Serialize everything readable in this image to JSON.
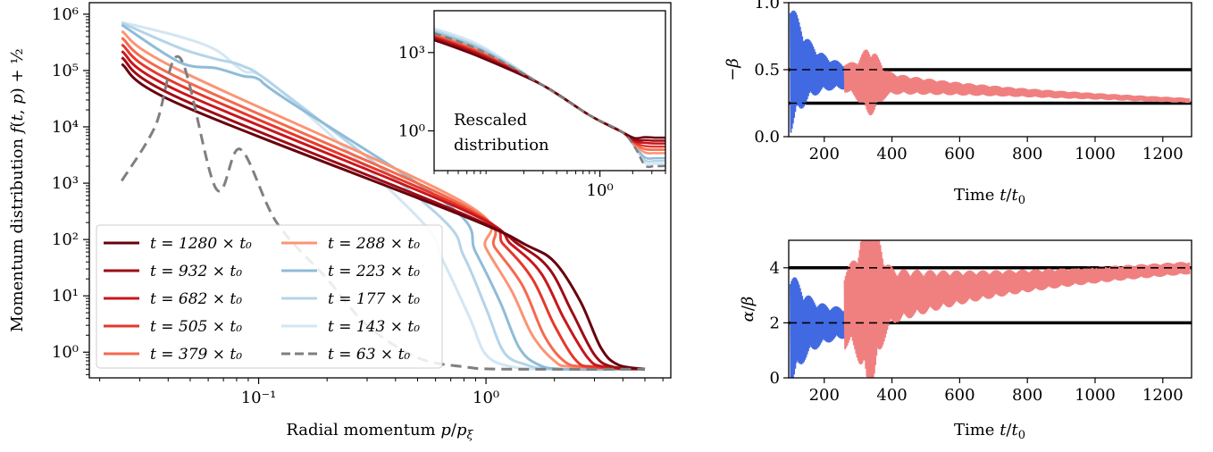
{
  "chart_data": [
    {
      "type": "line",
      "xlabel": "Radial momentum p/p_ξ",
      "ylabel": "Momentum distribution f(t,p) + ½",
      "xscale": "log",
      "yscale": "log",
      "xlim": [
        0.018,
        6.5
      ],
      "ylim": [
        0.35,
        1600000
      ],
      "x_ticks": [
        {
          "v": 0.1,
          "label": "10⁻¹"
        },
        {
          "v": 1,
          "label": "10⁰"
        }
      ],
      "y_ticks": [
        {
          "v": 1,
          "label": "10⁰"
        },
        {
          "v": 10,
          "label": "10¹"
        },
        {
          "v": 100,
          "label": "10²"
        },
        {
          "v": 1000,
          "label": "10³"
        },
        {
          "v": 10000,
          "label": "10⁴"
        },
        {
          "v": 100000,
          "label": "10⁵"
        },
        {
          "v": 1000000,
          "label": "10⁶"
        }
      ],
      "legend": "lower-left",
      "series": [
        {
          "name": "t = 1280 × t₀",
          "color": "#67000d",
          "dashed": false,
          "knots": [
            [
              0.025,
              130000
            ],
            [
              0.045,
              25000
            ],
            [
              0.8,
              260
            ],
            [
              1.5,
              80
            ],
            [
              2.0,
              40
            ],
            [
              2.6,
              8
            ],
            [
              3.2,
              1.2
            ],
            [
              3.8,
              0.6
            ],
            [
              5.0,
              0.5
            ]
          ]
        },
        {
          "name": "t = 932 × t₀",
          "color": "#9e0c15",
          "dashed": false,
          "knots": [
            [
              0.025,
              170000
            ],
            [
              0.045,
              32000
            ],
            [
              0.8,
              280
            ],
            [
              1.4,
              80
            ],
            [
              1.9,
              30
            ],
            [
              2.4,
              5
            ],
            [
              3.0,
              0.9
            ],
            [
              3.6,
              0.55
            ],
            [
              5.0,
              0.5
            ]
          ]
        },
        {
          "name": "t = 682 × t₀",
          "color": "#c8171c",
          "dashed": false,
          "knots": [
            [
              0.025,
              220000
            ],
            [
              0.045,
              42000
            ],
            [
              0.8,
              330
            ],
            [
              1.3,
              80
            ],
            [
              1.75,
              25
            ],
            [
              2.2,
              4
            ],
            [
              2.8,
              0.8
            ],
            [
              3.3,
              0.55
            ],
            [
              5.0,
              0.5
            ]
          ]
        },
        {
          "name": "t = 505 × t₀",
          "color": "#e5382b",
          "dashed": false,
          "knots": [
            [
              0.025,
              290000
            ],
            [
              0.045,
              55000
            ],
            [
              0.8,
              360
            ],
            [
              1.2,
              80
            ],
            [
              1.6,
              20
            ],
            [
              2.0,
              3
            ],
            [
              2.5,
              0.7
            ],
            [
              3.0,
              0.55
            ],
            [
              5.0,
              0.5
            ]
          ]
        },
        {
          "name": "t = 379 × t₀",
          "color": "#f4694d",
          "dashed": false,
          "knots": [
            [
              0.025,
              380000
            ],
            [
              0.045,
              72000
            ],
            [
              0.8,
              400
            ],
            [
              1.1,
              70
            ],
            [
              1.45,
              15
            ],
            [
              1.8,
              2
            ],
            [
              2.2,
              0.7
            ],
            [
              2.7,
              0.55
            ],
            [
              5.0,
              0.5
            ]
          ]
        },
        {
          "name": "t = 288 × t₀",
          "color": "#fb9474",
          "dashed": false,
          "knots": [
            [
              0.025,
              500000
            ],
            [
              0.045,
              100000
            ],
            [
              0.8,
              450
            ],
            [
              1.0,
              70
            ],
            [
              1.3,
              12
            ],
            [
              1.6,
              2
            ],
            [
              2.0,
              0.7
            ],
            [
              2.4,
              0.55
            ],
            [
              5.0,
              0.5
            ]
          ]
        },
        {
          "name": "t = 223 × t₀",
          "color": "#8fbcd8",
          "dashed": false,
          "knots": [
            [
              0.025,
              650000
            ],
            [
              0.045,
              140000
            ],
            [
              0.065,
              110000
            ],
            [
              0.085,
              80000
            ],
            [
              0.1,
              70000
            ],
            [
              0.13,
              32000
            ],
            [
              0.7,
              380
            ],
            [
              0.9,
              60
            ],
            [
              1.15,
              8
            ],
            [
              1.4,
              1.2
            ],
            [
              1.7,
              0.6
            ],
            [
              2.2,
              0.5
            ],
            [
              5.0,
              0.5
            ]
          ]
        },
        {
          "name": "t = 177 × t₀",
          "color": "#b4d4e8",
          "dashed": false,
          "knots": [
            [
              0.025,
              700000
            ],
            [
              0.045,
              250000
            ],
            [
              0.065,
              160000
            ],
            [
              0.085,
              120000
            ],
            [
              0.12,
              50000
            ],
            [
              0.6,
              300
            ],
            [
              0.8,
              50
            ],
            [
              1.0,
              6
            ],
            [
              1.2,
              1.0
            ],
            [
              1.5,
              0.6
            ],
            [
              2.0,
              0.5
            ],
            [
              5.0,
              0.5
            ]
          ]
        },
        {
          "name": "t = 143 × t₀",
          "color": "#d3e6f3",
          "dashed": false,
          "knots": [
            [
              0.025,
              720000
            ],
            [
              0.045,
              400000
            ],
            [
              0.065,
              230000
            ],
            [
              0.085,
              100000
            ],
            [
              0.12,
              50000
            ],
            [
              0.5,
              250
            ],
            [
              0.65,
              40
            ],
            [
              0.85,
              4
            ],
            [
              1.0,
              0.9
            ],
            [
              1.3,
              0.55
            ],
            [
              2.0,
              0.5
            ],
            [
              5.0,
              0.5
            ]
          ]
        },
        {
          "name": "t = 63 × t₀",
          "color": "#7f7f7f",
          "dashed": true,
          "knots": [
            [
              0.025,
              1100
            ],
            [
              0.035,
              10000
            ],
            [
              0.045,
              170000
            ],
            [
              0.065,
              800
            ],
            [
              0.083,
              4000
            ],
            [
              0.12,
              200
            ],
            [
              0.2,
              20
            ],
            [
              0.3,
              3
            ],
            [
              0.5,
              0.8
            ],
            [
              0.8,
              0.55
            ],
            [
              1.2,
              0.5
            ],
            [
              5.0,
              0.5
            ]
          ]
        }
      ]
    },
    {
      "type": "line",
      "title": "Rescaled distribution",
      "inset": true,
      "xscale": "log",
      "yscale": "log",
      "xlim": [
        0.03,
        4.0
      ],
      "ylim": [
        0.03,
        40000
      ],
      "x_ticks": [
        {
          "v": 1,
          "label": "10⁰"
        }
      ],
      "y_ticks": [
        {
          "v": 1,
          "label": "10⁰"
        },
        {
          "v": 1000,
          "label": "10³"
        }
      ],
      "note": "all ten curves collapse onto one shape"
    },
    {
      "type": "line",
      "ylabel": "−β",
      "xlabel": "Time t/t₀",
      "xlim": [
        95,
        1285
      ],
      "ylim": [
        0.0,
        1.0
      ],
      "x_ticks": [
        200,
        400,
        600,
        800,
        1000,
        1200
      ],
      "y_ticks": [
        {
          "v": 0.0,
          "label": "0.0"
        },
        {
          "v": 0.5,
          "label": "0.5"
        },
        {
          "v": 1.0,
          "label": "1.0"
        }
      ],
      "reference_lines": [
        0.5,
        0.25
      ],
      "segments": [
        {
          "color": "#4169e1",
          "x_range": [
            100,
            260
          ],
          "center": [
            0.55,
            0.45
          ],
          "amplitude": [
            0.45,
            0.08
          ]
        },
        {
          "color": "#f08080",
          "x_range": [
            260,
            1280
          ],
          "center": [
            0.45,
            0.27
          ],
          "amplitude": [
            0.1,
            0.015
          ],
          "bump_at": 335
        }
      ]
    },
    {
      "type": "line",
      "ylabel": "α/β",
      "xlabel": "Time t/t₀",
      "xlim": [
        95,
        1285
      ],
      "ylim": [
        0,
        5
      ],
      "x_ticks": [
        200,
        400,
        600,
        800,
        1000,
        1200
      ],
      "y_ticks": [
        0,
        2,
        4
      ],
      "reference_lines": [
        4,
        2
      ],
      "segments": [
        {
          "color": "#4169e1",
          "x_range": [
            100,
            260
          ],
          "center": [
            1.8,
            2.0
          ],
          "amplitude": [
            1.8,
            0.5
          ]
        },
        {
          "color": "#f08080",
          "x_range": [
            260,
            1280
          ],
          "center": [
            2.5,
            4.0
          ],
          "amplitude": [
            1.3,
            0.18
          ],
          "bump_at": 335
        }
      ]
    }
  ]
}
